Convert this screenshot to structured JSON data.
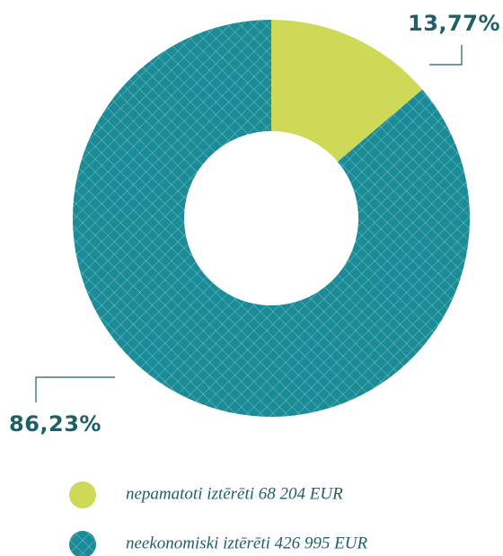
{
  "chart_data": {
    "type": "pie",
    "categories": [
      "nepamatoti iztērēti 68 204 EUR",
      "neekonomiski iztērēti 426 995 EUR"
    ],
    "values": [
      13.77,
      86.23
    ],
    "value_labels": [
      "13,77%",
      "86,23%"
    ],
    "colors": [
      "#cdd957",
      "#1a8c97"
    ],
    "hatched": [
      false,
      true
    ]
  }
}
